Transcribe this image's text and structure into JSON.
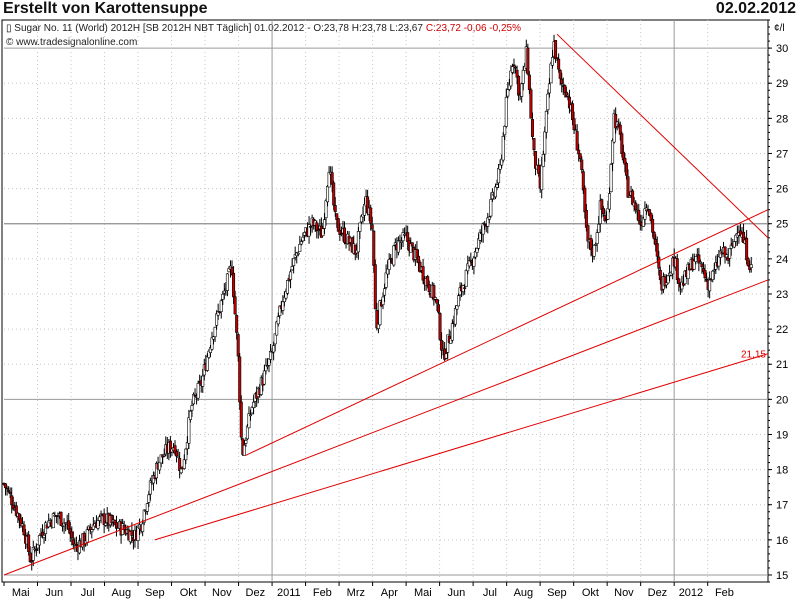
{
  "header": {
    "title": "Erstellt von Karottensuppe",
    "date": "02.02.2012"
  },
  "instrument": {
    "name": "Sugar No. 11 (World) 2012H [SB 2012H NBT  Täglich] 01.02.2012",
    "ohlc": "- O:23,78 H:23,78 L:23,67",
    "change": "C:23,72 -0,06 -0,25%",
    "source": "© www.tradesignalonline.com"
  },
  "colors": {
    "candle": "#000000",
    "down_body": "#c00000",
    "trendline": "#e00000",
    "grid": "#c8c8c8",
    "axis": "#000000"
  },
  "chart_data": {
    "type": "candlestick",
    "title": "Sugar No. 11 (World) 2012H, daily",
    "y_unit_label": "¢/l",
    "ylim": [
      14.8,
      30.8
    ],
    "y_ticks": [
      "15",
      "16",
      "17",
      "18",
      "19",
      "20",
      "21",
      "22",
      "23",
      "24",
      "25",
      "26",
      "27",
      "28",
      "29",
      "30"
    ],
    "x_labels": [
      "Mai",
      "Jun",
      "Jul",
      "Aug",
      "Sep",
      "Okt",
      "Nov",
      "Dez",
      "2011",
      "Feb",
      "Mrz",
      "Apr",
      "Mai",
      "Jun",
      "Jul",
      "Aug",
      "Sep",
      "Okt",
      "Nov",
      "Dez",
      "2012",
      "Feb"
    ],
    "x_label_positions": [
      0.5,
      1.5,
      2.5,
      3.5,
      4.5,
      5.5,
      6.5,
      7.5,
      8.5,
      9.5,
      10.5,
      11.5,
      12.5,
      13.5,
      14.5,
      15.5,
      16.5,
      17.5,
      18.5,
      19.5,
      20.5,
      21.5
    ],
    "x_range": [
      0,
      22.8
    ],
    "price_path": [
      [
        0.0,
        17.6
      ],
      [
        0.3,
        17.0
      ],
      [
        0.6,
        16.3
      ],
      [
        0.8,
        15.4
      ],
      [
        1.1,
        16.2
      ],
      [
        1.3,
        16.5
      ],
      [
        1.6,
        16.7
      ],
      [
        1.9,
        16.4
      ],
      [
        2.1,
        15.8
      ],
      [
        2.4,
        16.0
      ],
      [
        2.7,
        16.5
      ],
      [
        3.0,
        16.6
      ],
      [
        3.3,
        16.4
      ],
      [
        3.6,
        16.3
      ],
      [
        3.9,
        16.1
      ],
      [
        4.1,
        16.5
      ],
      [
        4.3,
        17.3
      ],
      [
        4.6,
        18.2
      ],
      [
        4.9,
        18.6
      ],
      [
        5.1,
        18.7
      ],
      [
        5.3,
        17.9
      ],
      [
        5.6,
        19.8
      ],
      [
        5.9,
        20.5
      ],
      [
        6.2,
        21.8
      ],
      [
        6.5,
        22.8
      ],
      [
        6.8,
        23.8
      ],
      [
        7.0,
        21.0
      ],
      [
        7.1,
        18.4
      ],
      [
        7.4,
        19.8
      ],
      [
        7.7,
        20.5
      ],
      [
        8.0,
        21.3
      ],
      [
        8.3,
        22.8
      ],
      [
        8.6,
        23.8
      ],
      [
        8.9,
        24.6
      ],
      [
        9.2,
        25.0
      ],
      [
        9.5,
        24.7
      ],
      [
        9.7,
        26.7
      ],
      [
        9.9,
        25.0
      ],
      [
        10.2,
        24.6
      ],
      [
        10.5,
        24.2
      ],
      [
        10.8,
        25.7
      ],
      [
        11.0,
        24.8
      ],
      [
        11.1,
        22.0
      ],
      [
        11.4,
        23.5
      ],
      [
        11.7,
        24.4
      ],
      [
        12.0,
        24.6
      ],
      [
        12.3,
        24.0
      ],
      [
        12.6,
        23.4
      ],
      [
        12.9,
        22.8
      ],
      [
        13.1,
        21.2
      ],
      [
        13.3,
        21.8
      ],
      [
        13.6,
        23.0
      ],
      [
        13.9,
        23.8
      ],
      [
        14.2,
        24.6
      ],
      [
        14.5,
        25.4
      ],
      [
        14.8,
        26.5
      ],
      [
        15.0,
        28.5
      ],
      [
        15.2,
        29.8
      ],
      [
        15.4,
        28.6
      ],
      [
        15.6,
        29.9
      ],
      [
        15.8,
        27.0
      ],
      [
        16.0,
        26.0
      ],
      [
        16.2,
        28.2
      ],
      [
        16.4,
        30.2
      ],
      [
        16.6,
        29.0
      ],
      [
        16.8,
        28.8
      ],
      [
        17.0,
        27.8
      ],
      [
        17.2,
        26.8
      ],
      [
        17.4,
        24.5
      ],
      [
        17.6,
        24.2
      ],
      [
        17.8,
        25.5
      ],
      [
        18.0,
        25.0
      ],
      [
        18.2,
        28.1
      ],
      [
        18.4,
        27.4
      ],
      [
        18.6,
        26.0
      ],
      [
        18.8,
        25.6
      ],
      [
        19.0,
        25.0
      ],
      [
        19.2,
        25.7
      ],
      [
        19.4,
        24.6
      ],
      [
        19.6,
        23.2
      ],
      [
        19.8,
        23.6
      ],
      [
        20.0,
        24.0
      ],
      [
        20.2,
        23.2
      ],
      [
        20.4,
        23.6
      ],
      [
        20.6,
        24.0
      ],
      [
        20.8,
        23.8
      ],
      [
        21.0,
        23.3
      ],
      [
        21.2,
        23.6
      ],
      [
        21.4,
        24.2
      ],
      [
        21.6,
        24.0
      ],
      [
        21.8,
        24.5
      ],
      [
        21.9,
        25.0
      ],
      [
        22.1,
        24.4
      ],
      [
        22.3,
        23.7
      ]
    ],
    "trendlines": [
      {
        "name": "downtrend",
        "from": [
          16.5,
          30.4
        ],
        "to": [
          22.8,
          24.6
        ]
      },
      {
        "name": "channel-upper",
        "from": [
          7.2,
          18.4
        ],
        "to": [
          22.8,
          25.4
        ]
      },
      {
        "name": "uptrend-steep",
        "from": [
          0.0,
          15.0
        ],
        "to": [
          22.8,
          23.4
        ]
      },
      {
        "name": "uptrend-shallow",
        "from": [
          4.5,
          16.0
        ],
        "to": [
          22.8,
          21.3
        ],
        "label": "21,15"
      }
    ],
    "horizontal_line": {
      "name": "resistance-25",
      "y": 25.0
    }
  }
}
